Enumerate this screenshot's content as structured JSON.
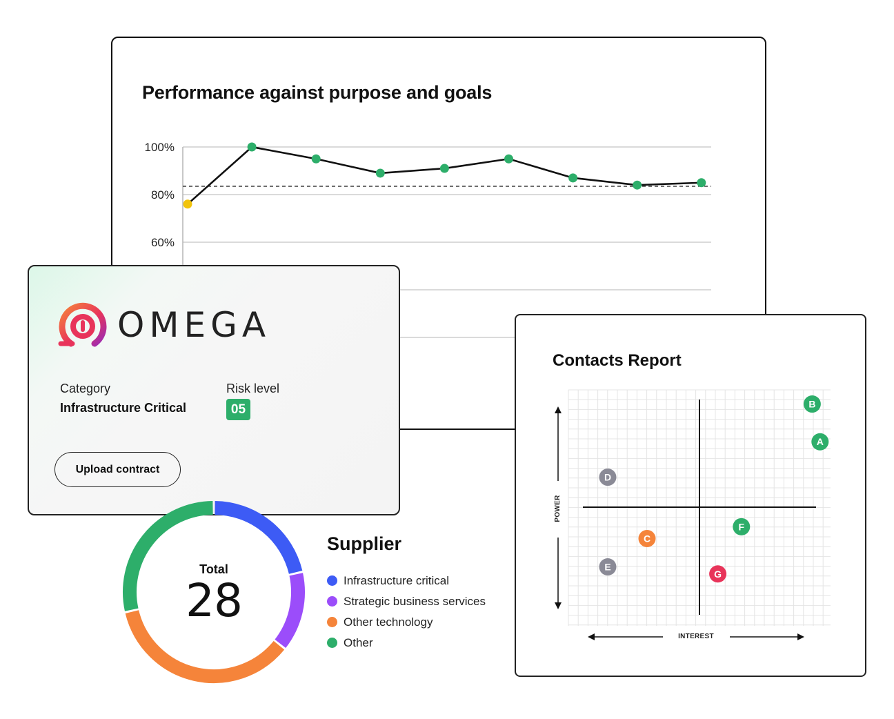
{
  "performance": {
    "title": "Performance against purpose and goals",
    "chart_data": {
      "type": "line",
      "title": "Performance against purpose and goals",
      "yticks": [
        "100%",
        "80%",
        "60%"
      ],
      "ylim": [
        0,
        100
      ],
      "values": [
        76,
        100,
        95,
        89,
        91,
        95,
        87,
        84,
        85
      ],
      "target": 83.5,
      "point_colors": [
        "#f2c40c",
        "#2dae6a",
        "#2dae6a",
        "#2dae6a",
        "#2dae6a",
        "#2dae6a",
        "#2dae6a",
        "#2dae6a",
        "#2dae6a"
      ],
      "grid": true
    }
  },
  "omega": {
    "brand": "OMEGA",
    "logo_icon": "omega-logo-icon",
    "category_label": "Category",
    "category_value": "Infrastructure Critical",
    "risk_label": "Risk level",
    "risk_value": "05",
    "upload_label": "Upload contract"
  },
  "contacts": {
    "title": "Contacts Report",
    "chart_data": {
      "type": "scatter",
      "title": "Contacts Report",
      "xlabel": "INTEREST",
      "ylabel": "POWER",
      "xlim": [
        0,
        10
      ],
      "ylim": [
        0,
        10
      ],
      "grid": true,
      "points": [
        {
          "label": "B",
          "x": 9.3,
          "y": 9.4,
          "color": "#2dae6a"
        },
        {
          "label": "A",
          "x": 9.6,
          "y": 7.8,
          "color": "#2dae6a"
        },
        {
          "label": "D",
          "x": 1.5,
          "y": 6.3,
          "color": "#8a8a96"
        },
        {
          "label": "F",
          "x": 6.6,
          "y": 4.2,
          "color": "#2dae6a"
        },
        {
          "label": "C",
          "x": 3.0,
          "y": 3.7,
          "color": "#f5843a"
        },
        {
          "label": "E",
          "x": 1.5,
          "y": 2.5,
          "color": "#8a8a96"
        },
        {
          "label": "G",
          "x": 5.7,
          "y": 2.2,
          "color": "#e8345a"
        }
      ]
    }
  },
  "supplier": {
    "title": "Supplier",
    "total_label": "Total",
    "total_value": "28",
    "chart_data": {
      "type": "pie",
      "title": "Supplier",
      "total": 28,
      "slices": [
        {
          "name": "Infrastructure critical",
          "value": 6,
          "color": "#3d5bf5"
        },
        {
          "name": "Strategic business services",
          "value": 4,
          "color": "#9b4dfa"
        },
        {
          "name": "Other technology",
          "value": 10,
          "color": "#f5843a"
        },
        {
          "name": "Other",
          "value": 8,
          "color": "#2dae6a"
        }
      ]
    }
  }
}
